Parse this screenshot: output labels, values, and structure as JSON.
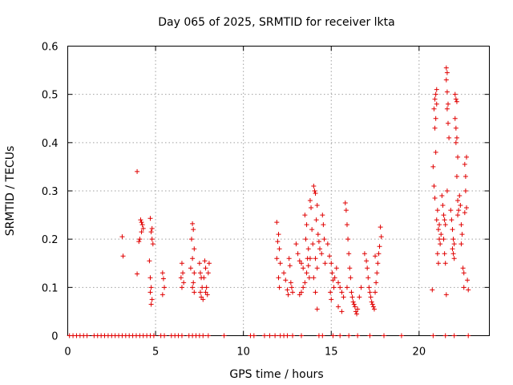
{
  "chart_data": {
    "type": "scatter",
    "title": "Day 065 of 2025, SRMTID for receiver lkta",
    "xlabel": "GPS time / hours",
    "ylabel": "SRMTID / TECUs",
    "xlim": [
      0,
      24
    ],
    "ylim": [
      0,
      0.6
    ],
    "xticks": [
      0,
      5,
      10,
      15,
      20
    ],
    "yticks": [
      0,
      0.1,
      0.2,
      0.3,
      0.4,
      0.5,
      0.6
    ],
    "xtick_labels": [
      "0",
      "5",
      "10",
      "15",
      "20"
    ],
    "ytick_labels": [
      "0",
      "0.1",
      "0.2",
      "0.3",
      "0.4",
      "0.5",
      "0.6"
    ],
    "grid": true,
    "legend": "none",
    "marker": "+",
    "color": "#e00000",
    "series": [
      {
        "name": "SRMTID",
        "points": [
          [
            0.1,
            0
          ],
          [
            0.3,
            0
          ],
          [
            0.5,
            0
          ],
          [
            0.7,
            0
          ],
          [
            0.9,
            0
          ],
          [
            1.1,
            0
          ],
          [
            1.5,
            0
          ],
          [
            1.7,
            0
          ],
          [
            1.9,
            0
          ],
          [
            2.1,
            0
          ],
          [
            2.3,
            0
          ],
          [
            2.5,
            0
          ],
          [
            2.7,
            0
          ],
          [
            2.9,
            0
          ],
          [
            3.1,
            0
          ],
          [
            3.3,
            0
          ],
          [
            3.5,
            0
          ],
          [
            3.7,
            0
          ],
          [
            3.9,
            0
          ],
          [
            4.1,
            0
          ],
          [
            4.3,
            0
          ],
          [
            4.5,
            0
          ],
          [
            4.7,
            0
          ],
          [
            4.9,
            0
          ],
          [
            5.3,
            0
          ],
          [
            5.5,
            0
          ],
          [
            5.9,
            0
          ],
          [
            6.1,
            0
          ],
          [
            6.3,
            0
          ],
          [
            6.5,
            0
          ],
          [
            6.9,
            0
          ],
          [
            7.1,
            0
          ],
          [
            7.3,
            0
          ],
          [
            7.5,
            0
          ],
          [
            7.7,
            0
          ],
          [
            8.0,
            0
          ],
          [
            8.9,
            0
          ],
          [
            10.4,
            0
          ],
          [
            10.6,
            0
          ],
          [
            11.2,
            0
          ],
          [
            11.5,
            0
          ],
          [
            11.8,
            0
          ],
          [
            12.1,
            0
          ],
          [
            12.3,
            0
          ],
          [
            12.5,
            0
          ],
          [
            12.8,
            0
          ],
          [
            13.3,
            0
          ],
          [
            14.3,
            0
          ],
          [
            14.5,
            0
          ],
          [
            15.1,
            0
          ],
          [
            15.5,
            0
          ],
          [
            16.0,
            0
          ],
          [
            16.5,
            0
          ],
          [
            17.2,
            0
          ],
          [
            18.0,
            0
          ],
          [
            19.0,
            0
          ],
          [
            20.8,
            0
          ],
          [
            21.5,
            0
          ],
          [
            22.0,
            0
          ],
          [
            22.8,
            0
          ],
          [
            3.1,
            0.205
          ],
          [
            3.15,
            0.165
          ],
          [
            3.95,
            0.34
          ],
          [
            3.95,
            0.128
          ],
          [
            4.15,
            0.24
          ],
          [
            4.2,
            0.235
          ],
          [
            4.25,
            0.23
          ],
          [
            4.1,
            0.2
          ],
          [
            4.2,
            0.215
          ],
          [
            4.3,
            0.222
          ],
          [
            4.05,
            0.195
          ],
          [
            4.7,
            0.243
          ],
          [
            4.75,
            0.215
          ],
          [
            4.8,
            0.2
          ],
          [
            4.85,
            0.19
          ],
          [
            4.65,
            0.155
          ],
          [
            4.7,
            0.12
          ],
          [
            4.75,
            0.1
          ],
          [
            4.7,
            0.09
          ],
          [
            4.8,
            0.075
          ],
          [
            4.75,
            0.065
          ],
          [
            4.8,
            0.222
          ],
          [
            5.4,
            0.13
          ],
          [
            5.45,
            0.118
          ],
          [
            5.5,
            0.1
          ],
          [
            5.4,
            0.085
          ],
          [
            6.5,
            0.15
          ],
          [
            6.55,
            0.13
          ],
          [
            6.45,
            0.12
          ],
          [
            6.6,
            0.11
          ],
          [
            6.5,
            0.1
          ],
          [
            7.1,
            0.232
          ],
          [
            7.15,
            0.22
          ],
          [
            7.05,
            0.2
          ],
          [
            7.2,
            0.18
          ],
          [
            7.1,
            0.16
          ],
          [
            7.0,
            0.14
          ],
          [
            7.2,
            0.13
          ],
          [
            7.15,
            0.11
          ],
          [
            7.1,
            0.1
          ],
          [
            7.2,
            0.09
          ],
          [
            7.5,
            0.15
          ],
          [
            7.55,
            0.13
          ],
          [
            7.6,
            0.12
          ],
          [
            7.65,
            0.1
          ],
          [
            7.55,
            0.09
          ],
          [
            7.6,
            0.08
          ],
          [
            7.7,
            0.075
          ],
          [
            7.8,
            0.155
          ],
          [
            7.85,
            0.14
          ],
          [
            7.75,
            0.12
          ],
          [
            7.9,
            0.1
          ],
          [
            7.85,
            0.09
          ],
          [
            8.0,
            0.13
          ],
          [
            8.05,
            0.15
          ],
          [
            7.95,
            0.085
          ],
          [
            11.9,
            0.235
          ],
          [
            12.0,
            0.21
          ],
          [
            11.95,
            0.195
          ],
          [
            12.05,
            0.18
          ],
          [
            11.9,
            0.16
          ],
          [
            12.1,
            0.15
          ],
          [
            12.0,
            0.12
          ],
          [
            12.05,
            0.1
          ],
          [
            12.3,
            0.13
          ],
          [
            12.4,
            0.115
          ],
          [
            12.5,
            0.095
          ],
          [
            12.55,
            0.085
          ],
          [
            12.6,
            0.16
          ],
          [
            12.65,
            0.145
          ],
          [
            12.7,
            0.11
          ],
          [
            12.75,
            0.1
          ],
          [
            12.8,
            0.09
          ],
          [
            13.0,
            0.19
          ],
          [
            13.1,
            0.17
          ],
          [
            13.2,
            0.155
          ],
          [
            13.3,
            0.15
          ],
          [
            13.4,
            0.14
          ],
          [
            13.5,
            0.25
          ],
          [
            13.6,
            0.23
          ],
          [
            13.55,
            0.2
          ],
          [
            13.7,
            0.18
          ],
          [
            13.65,
            0.16
          ],
          [
            13.75,
            0.12
          ],
          [
            13.8,
            0.28
          ],
          [
            13.85,
            0.265
          ],
          [
            13.9,
            0.22
          ],
          [
            13.95,
            0.19
          ],
          [
            13.8,
            0.16
          ],
          [
            13.7,
            0.145
          ],
          [
            13.6,
            0.13
          ],
          [
            13.5,
            0.11
          ],
          [
            13.4,
            0.1
          ],
          [
            13.3,
            0.09
          ],
          [
            13.2,
            0.085
          ],
          [
            14.0,
            0.31
          ],
          [
            14.05,
            0.3
          ],
          [
            14.1,
            0.295
          ],
          [
            14.2,
            0.27
          ],
          [
            14.15,
            0.24
          ],
          [
            14.25,
            0.21
          ],
          [
            14.3,
            0.195
          ],
          [
            14.35,
            0.18
          ],
          [
            14.1,
            0.16
          ],
          [
            14.2,
            0.14
          ],
          [
            14.0,
            0.12
          ],
          [
            14.1,
            0.09
          ],
          [
            14.2,
            0.055
          ],
          [
            14.5,
            0.25
          ],
          [
            14.55,
            0.23
          ],
          [
            14.6,
            0.2
          ],
          [
            14.45,
            0.17
          ],
          [
            14.65,
            0.15
          ],
          [
            14.8,
            0.19
          ],
          [
            14.9,
            0.165
          ],
          [
            15.0,
            0.15
          ],
          [
            15.05,
            0.13
          ],
          [
            15.1,
            0.115
          ],
          [
            15.15,
            0.1
          ],
          [
            14.95,
            0.09
          ],
          [
            15.0,
            0.075
          ],
          [
            15.2,
            0.12
          ],
          [
            15.3,
            0.14
          ],
          [
            15.4,
            0.11
          ],
          [
            15.5,
            0.1
          ],
          [
            15.6,
            0.09
          ],
          [
            15.7,
            0.08
          ],
          [
            15.4,
            0.06
          ],
          [
            15.6,
            0.05
          ],
          [
            15.8,
            0.275
          ],
          [
            15.85,
            0.26
          ],
          [
            15.9,
            0.23
          ],
          [
            15.95,
            0.2
          ],
          [
            16.0,
            0.17
          ],
          [
            16.05,
            0.14
          ],
          [
            16.1,
            0.12
          ],
          [
            15.9,
            0.1
          ],
          [
            16.15,
            0.09
          ],
          [
            16.2,
            0.08
          ],
          [
            16.25,
            0.07
          ],
          [
            16.3,
            0.065
          ],
          [
            16.35,
            0.06
          ],
          [
            16.4,
            0.05
          ],
          [
            16.45,
            0.045
          ],
          [
            16.5,
            0.055
          ],
          [
            16.6,
            0.08
          ],
          [
            16.7,
            0.1
          ],
          [
            16.9,
            0.17
          ],
          [
            17.0,
            0.155
          ],
          [
            17.05,
            0.14
          ],
          [
            17.1,
            0.12
          ],
          [
            17.15,
            0.1
          ],
          [
            17.2,
            0.09
          ],
          [
            17.25,
            0.08
          ],
          [
            17.3,
            0.07
          ],
          [
            17.35,
            0.065
          ],
          [
            17.4,
            0.06
          ],
          [
            17.45,
            0.055
          ],
          [
            17.5,
            0.09
          ],
          [
            17.55,
            0.11
          ],
          [
            17.6,
            0.13
          ],
          [
            17.65,
            0.15
          ],
          [
            17.7,
            0.17
          ],
          [
            17.75,
            0.185
          ],
          [
            17.8,
            0.225
          ],
          [
            17.85,
            0.205
          ],
          [
            17.5,
            0.165
          ],
          [
            20.75,
            0.095
          ],
          [
            20.8,
            0.35
          ],
          [
            20.85,
            0.31
          ],
          [
            20.9,
            0.285
          ],
          [
            20.85,
            0.47
          ],
          [
            20.9,
            0.49
          ],
          [
            20.95,
            0.5
          ],
          [
            20.95,
            0.45
          ],
          [
            20.9,
            0.43
          ],
          [
            21.0,
            0.51
          ],
          [
            21.0,
            0.48
          ],
          [
            20.95,
            0.38
          ],
          [
            21.05,
            0.26
          ],
          [
            21.0,
            0.24
          ],
          [
            21.1,
            0.22
          ],
          [
            21.15,
            0.2
          ],
          [
            21.05,
            0.17
          ],
          [
            21.1,
            0.15
          ],
          [
            21.2,
            0.19
          ],
          [
            21.25,
            0.21
          ],
          [
            21.15,
            0.23
          ],
          [
            21.3,
            0.29
          ],
          [
            21.35,
            0.27
          ],
          [
            21.4,
            0.25
          ],
          [
            21.45,
            0.24
          ],
          [
            21.5,
            0.23
          ],
          [
            21.4,
            0.2
          ],
          [
            21.45,
            0.17
          ],
          [
            21.5,
            0.15
          ],
          [
            21.55,
            0.555
          ],
          [
            21.6,
            0.545
          ],
          [
            21.55,
            0.53
          ],
          [
            21.6,
            0.505
          ],
          [
            21.65,
            0.48
          ],
          [
            21.6,
            0.47
          ],
          [
            21.65,
            0.44
          ],
          [
            21.7,
            0.41
          ],
          [
            21.6,
            0.3
          ],
          [
            21.55,
            0.085
          ],
          [
            21.8,
            0.26
          ],
          [
            21.85,
            0.24
          ],
          [
            21.9,
            0.22
          ],
          [
            21.95,
            0.2
          ],
          [
            22.0,
            0.19
          ],
          [
            21.9,
            0.18
          ],
          [
            21.95,
            0.17
          ],
          [
            22.0,
            0.16
          ],
          [
            22.05,
            0.45
          ],
          [
            22.1,
            0.49
          ],
          [
            22.05,
            0.5
          ],
          [
            22.15,
            0.485
          ],
          [
            22.1,
            0.43
          ],
          [
            22.15,
            0.41
          ],
          [
            22.1,
            0.4
          ],
          [
            22.2,
            0.37
          ],
          [
            22.15,
            0.33
          ],
          [
            22.2,
            0.28
          ],
          [
            22.25,
            0.26
          ],
          [
            22.2,
            0.25
          ],
          [
            22.3,
            0.29
          ],
          [
            22.35,
            0.27
          ],
          [
            22.4,
            0.23
          ],
          [
            22.45,
            0.21
          ],
          [
            22.4,
            0.19
          ],
          [
            22.5,
            0.14
          ],
          [
            22.55,
            0.13
          ],
          [
            22.55,
            0.1
          ],
          [
            22.6,
            0.355
          ],
          [
            22.65,
            0.33
          ],
          [
            22.7,
            0.37
          ],
          [
            22.65,
            0.3
          ],
          [
            22.6,
            0.255
          ],
          [
            22.7,
            0.265
          ],
          [
            22.75,
            0.115
          ],
          [
            22.8,
            0.095
          ]
        ]
      }
    ]
  }
}
